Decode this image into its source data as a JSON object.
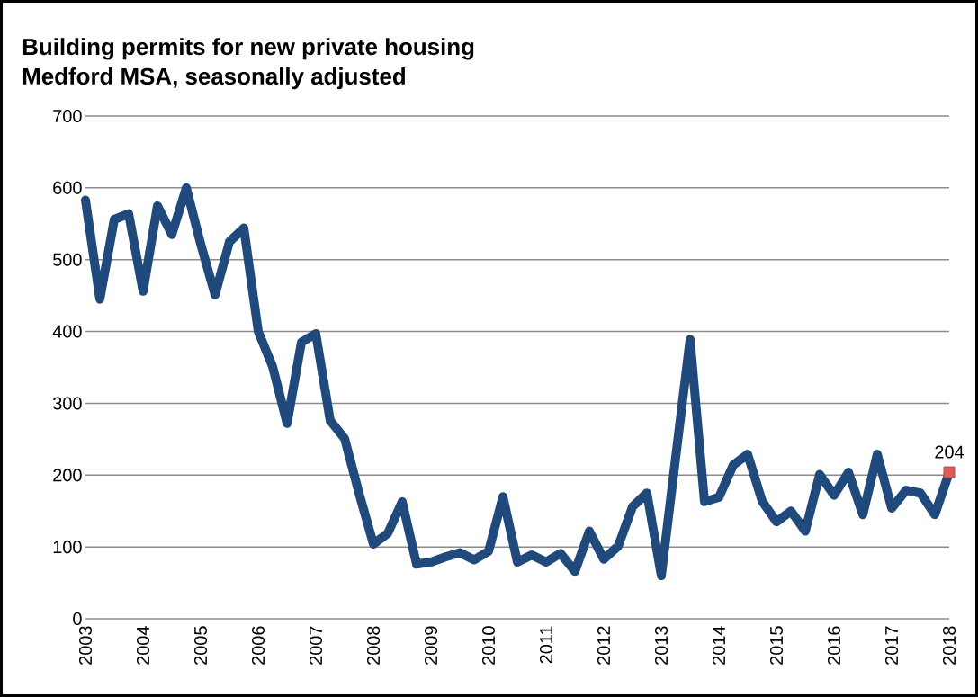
{
  "chart_data": {
    "type": "line",
    "title": "Building permits for new private housing\nMedford MSA, seasonally adjusted",
    "x": [
      2003,
      2003.25,
      2003.5,
      2003.75,
      2004,
      2004.25,
      2004.5,
      2004.75,
      2005,
      2005.25,
      2005.5,
      2005.75,
      2006,
      2006.25,
      2006.5,
      2006.75,
      2007,
      2007.25,
      2007.5,
      2007.75,
      2008,
      2008.25,
      2008.5,
      2008.75,
      2009,
      2009.25,
      2009.5,
      2009.75,
      2010,
      2010.25,
      2010.5,
      2010.75,
      2011,
      2011.25,
      2011.5,
      2011.75,
      2012,
      2012.25,
      2012.5,
      2012.75,
      2013,
      2013.25,
      2013.5,
      2013.75,
      2014,
      2014.25,
      2014.5,
      2014.75,
      2015,
      2015.25,
      2015.5,
      2015.75,
      2016,
      2016.25,
      2016.5,
      2016.75,
      2017,
      2017.25,
      2017.5,
      2017.75,
      2018
    ],
    "series": [
      {
        "color": "#214a7c",
        "marker": "none",
        "line_style": "solid",
        "values": [
          583,
          445,
          556,
          564,
          456,
          575,
          535,
          600,
          522,
          451,
          525,
          544,
          400,
          351,
          272,
          385,
          397,
          276,
          251,
          175,
          104,
          119,
          163,
          76,
          79,
          86,
          92,
          82,
          94,
          170,
          79,
          89,
          79,
          91,
          66,
          122,
          83,
          101,
          156,
          175,
          60,
          225,
          389,
          163,
          169,
          214,
          229,
          164,
          135,
          150,
          122,
          201,
          172,
          204,
          145,
          229,
          154,
          179,
          175,
          145,
          204
        ]
      },
      {
        "type": "scatter",
        "color": "#e05a5a",
        "marker": "square",
        "x": [
          2018
        ],
        "values": [
          204
        ],
        "value_labels": [
          "204"
        ]
      }
    ],
    "xlim": [
      2003,
      2018
    ],
    "xticks": [
      2003,
      2004,
      2005,
      2006,
      2007,
      2008,
      2009,
      2010,
      2011,
      2012,
      2013,
      2014,
      2015,
      2016,
      2017,
      2018
    ],
    "ylim": [
      0,
      700
    ],
    "yticks": [
      0,
      100,
      200,
      300,
      400,
      500,
      600,
      700
    ],
    "grid": "y"
  }
}
